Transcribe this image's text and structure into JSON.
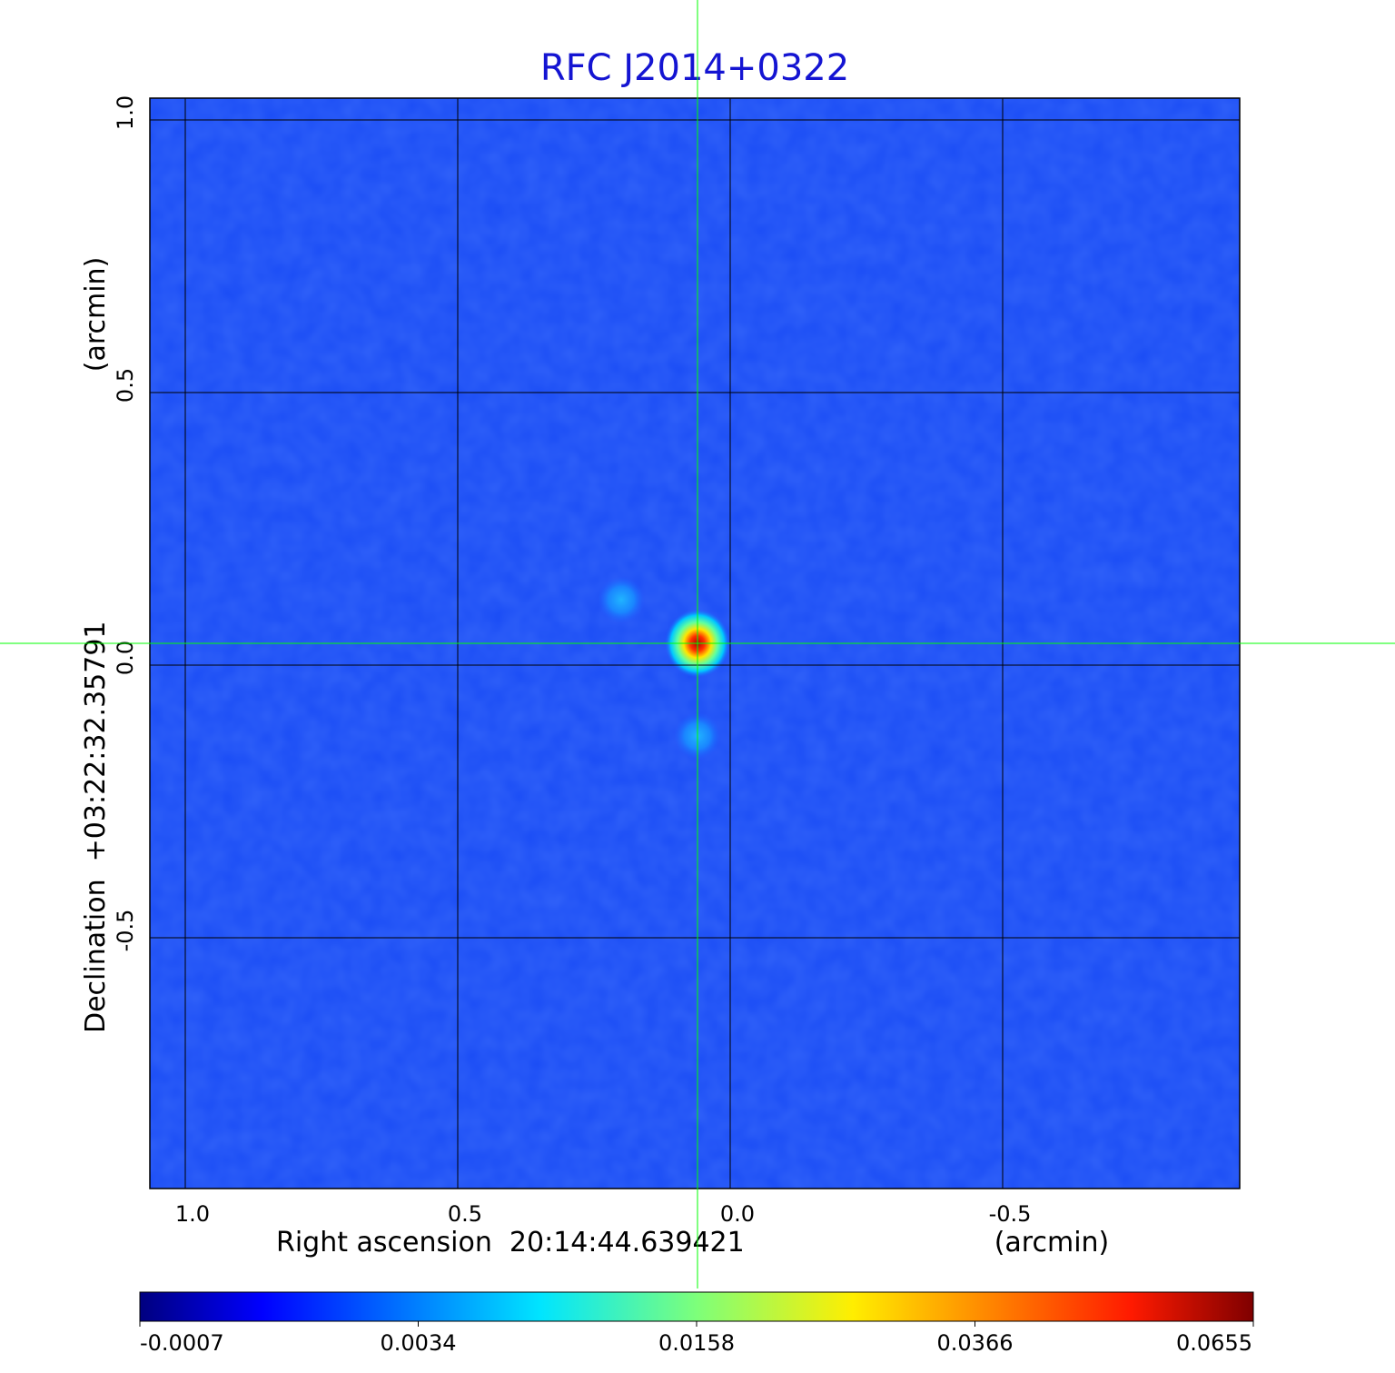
{
  "chart_data": {
    "type": "heatmap",
    "title": "RFC J2014+0322",
    "xlabel": "Right ascension  20:14:44.639421",
    "xunit": "(arcmin)",
    "ylabel": "Declination  +03:22:32.35791",
    "yunit": "(arcmin)",
    "xlim": [
      1.065,
      -0.935
    ],
    "ylim": [
      -0.96,
      1.04
    ],
    "x_ticks": [
      {
        "value": 1.0,
        "label": "1.0"
      },
      {
        "value": 0.5,
        "label": "0.5"
      },
      {
        "value": 0.0,
        "label": "0.0"
      },
      {
        "value": -0.5,
        "label": "-0.5"
      }
    ],
    "y_ticks": [
      {
        "value": 1.0,
        "label": "1.0"
      },
      {
        "value": 0.5,
        "label": "0.5"
      },
      {
        "value": 0.0,
        "label": "0.0"
      },
      {
        "value": -0.5,
        "label": "-0.5"
      }
    ],
    "grid": true,
    "crosshair": {
      "x": 0.06,
      "y": 0.04,
      "color": "#00ff00"
    },
    "colormap": "jet",
    "colorbar": {
      "position": "bottom",
      "labels": [
        "-0.0007",
        "0.0034",
        "0.0158",
        "0.0366",
        "0.0655"
      ],
      "min": -0.0007,
      "max": 0.0655
    },
    "sources": [
      {
        "x": 0.06,
        "y": 0.04,
        "peak": 0.0655
      },
      {
        "x": 0.2,
        "y": 0.12,
        "peak": 0.0034
      },
      {
        "x": 0.06,
        "y": -0.13,
        "peak": 0.0034
      }
    ]
  }
}
